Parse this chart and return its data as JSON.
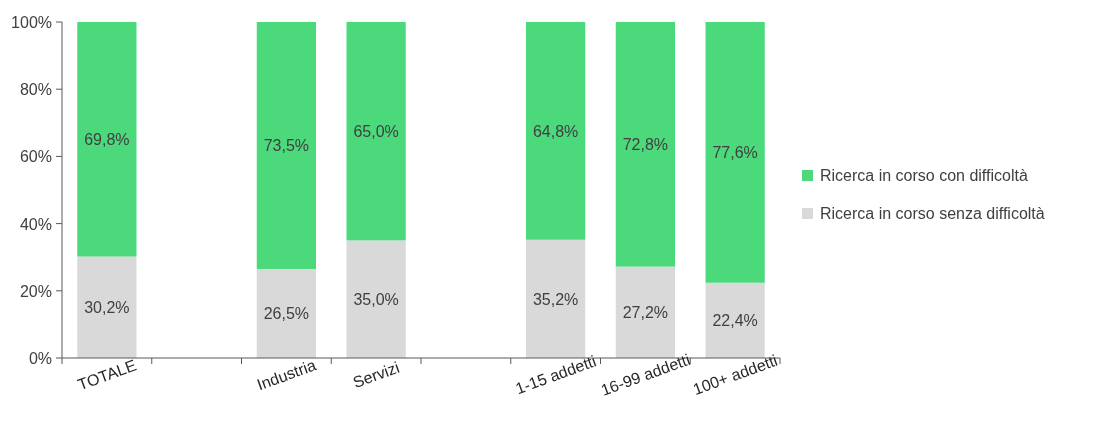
{
  "chart_data": {
    "type": "bar",
    "stacked": true,
    "categories": [
      "TOTALE",
      null,
      "Industria",
      "Servizi",
      null,
      "1-15 addetti",
      "16-99 addetti",
      "100+ addetti"
    ],
    "series": [
      {
        "name": "Ricerca in corso senza difficoltà",
        "color": "#d9d9d9",
        "values": [
          30.2,
          null,
          26.5,
          35.0,
          null,
          35.2,
          27.2,
          22.4
        ],
        "value_labels": [
          "30,2%",
          null,
          "26,5%",
          "35,0%",
          null,
          "35,2%",
          "27,2%",
          "22,4%"
        ]
      },
      {
        "name": "Ricerca in corso con difficoltà",
        "color": "#4cd97b",
        "values": [
          69.8,
          null,
          73.5,
          65.0,
          null,
          64.8,
          72.8,
          77.6
        ],
        "value_labels": [
          "69,8%",
          null,
          "73,5%",
          "65,0%",
          null,
          "64,8%",
          "72,8%",
          "77,6%"
        ]
      }
    ],
    "ylim": [
      0,
      100
    ],
    "yticks": [
      {
        "value": 0,
        "label": "0%"
      },
      {
        "value": 20,
        "label": "20%"
      },
      {
        "value": 40,
        "label": "40%"
      },
      {
        "value": 60,
        "label": "60%"
      },
      {
        "value": 80,
        "label": "80%"
      },
      {
        "value": 100,
        "label": "100%"
      }
    ],
    "grid": false,
    "legend": "right"
  }
}
